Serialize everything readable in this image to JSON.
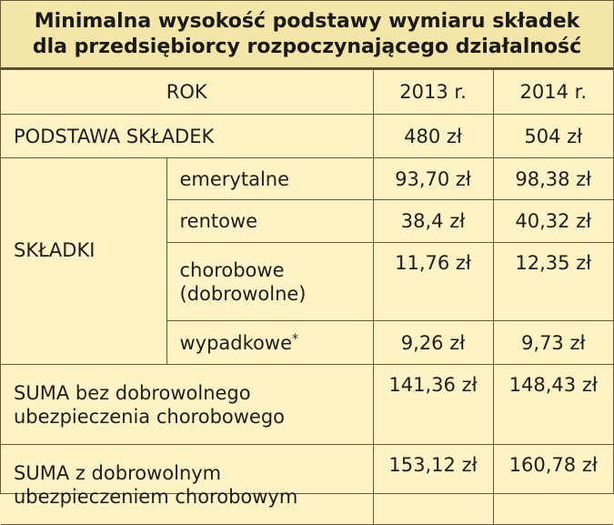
{
  "title": {
    "line1": "Minimalna wysokość podstawy wymiaru składek",
    "line2": "dla przedsiębiorcy rozpoczynającego działalność"
  },
  "header": {
    "rok": "ROK",
    "y2013": "2013 r.",
    "y2014": "2014 r."
  },
  "podstawa": {
    "label": "PODSTAWA SKŁADEK",
    "v2013": "480 zł",
    "v2014": "504 zł"
  },
  "skladki": {
    "label": "SKŁADKI",
    "items": [
      {
        "label": "emerytalne",
        "v2013": "93,70 zł",
        "v2014": "98,38 zł"
      },
      {
        "label": "rentowe",
        "v2013": "38,4 zł",
        "v2014": "40,32 zł"
      },
      {
        "label_line1": "chorobowe",
        "label_line2": "(dobrowolne)",
        "v2013": "11,76 zł",
        "v2014": "12,35 zł"
      },
      {
        "label": "wypadkowe",
        "footnote_mark": "*",
        "v2013": "9,26 zł",
        "v2014": "9,73 zł"
      }
    ]
  },
  "suma_bez": {
    "line1": "SUMA bez dobrowolnego",
    "line2": "ubezpieczenia chorobowego",
    "v2013": "141,36 zł",
    "v2014": "148,43 zł"
  },
  "suma_z": {
    "line1": "SUMA z dobrowolnym",
    "line2": "ubezpieczeniem chorobowym",
    "v2013": "153,12 zł",
    "v2014": "160,78 zł"
  }
}
